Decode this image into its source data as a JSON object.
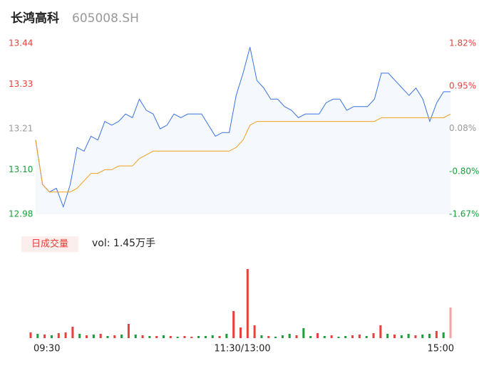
{
  "header": {
    "name": "长鸿高科",
    "code": "605008.SH"
  },
  "chart_data": [
    {
      "type": "line",
      "series": [
        {
          "name": "price",
          "color": "#3a73e0",
          "fill": "#f5f8fd",
          "values": [
            13.18,
            13.06,
            13.04,
            13.05,
            13.0,
            13.06,
            13.16,
            13.15,
            13.19,
            13.18,
            13.23,
            13.22,
            13.23,
            13.25,
            13.24,
            13.29,
            13.26,
            13.25,
            13.21,
            13.22,
            13.25,
            13.24,
            13.25,
            13.25,
            13.25,
            13.22,
            13.19,
            13.2,
            13.2,
            13.3,
            13.36,
            13.43,
            13.34,
            13.32,
            13.29,
            13.29,
            13.27,
            13.26,
            13.24,
            13.25,
            13.25,
            13.25,
            13.28,
            13.29,
            13.29,
            13.26,
            13.27,
            13.27,
            13.27,
            13.29,
            13.36,
            13.36,
            13.34,
            13.32,
            13.3,
            13.32,
            13.29,
            13.23,
            13.28,
            13.31,
            13.31
          ]
        },
        {
          "name": "average",
          "color": "#f0a020",
          "values": [
            13.18,
            13.06,
            13.04,
            13.04,
            13.04,
            13.04,
            13.05,
            13.07,
            13.09,
            13.09,
            13.1,
            13.1,
            13.11,
            13.11,
            13.11,
            13.13,
            13.14,
            13.15,
            13.15,
            13.15,
            13.15,
            13.15,
            13.15,
            13.15,
            13.15,
            13.15,
            13.15,
            13.15,
            13.15,
            13.16,
            13.18,
            13.22,
            13.23,
            13.23,
            13.23,
            13.23,
            13.23,
            13.23,
            13.23,
            13.23,
            13.23,
            13.23,
            13.23,
            13.23,
            13.23,
            13.23,
            13.23,
            13.23,
            13.23,
            13.23,
            13.24,
            13.24,
            13.24,
            13.24,
            13.24,
            13.24,
            13.24,
            13.24,
            13.24,
            13.24,
            13.25
          ]
        }
      ],
      "ylim": [
        12.98,
        13.44
      ],
      "yticks": [
        13.44,
        13.33,
        13.21,
        {
          "value": 13.1,
          "label": "13.10"
        },
        12.98
      ],
      "y2lim": [
        -1.67,
        1.82
      ],
      "y2ticks": [
        {
          "value": 1.82,
          "label": "1.82%"
        },
        {
          "value": 0.95,
          "label": "0.95%"
        },
        {
          "value": 0.08,
          "label": "0.08%"
        },
        {
          "value": -0.8,
          "label": "-0.80%"
        },
        {
          "value": -1.67,
          "label": "-1.67%"
        }
      ],
      "tick_colors": [
        "#e8403a",
        "#e8403a",
        "#999999",
        "#1a9f3a",
        "#1a9f3a"
      ]
    },
    {
      "type": "bar",
      "label": "日成交量",
      "summary": "vol: 1.45万手",
      "values": [
        8,
        6,
        5,
        4,
        7,
        8,
        16,
        6,
        4,
        5,
        6,
        3,
        4,
        5,
        20,
        5,
        4,
        3,
        3,
        4,
        3,
        2,
        3,
        2,
        3,
        3,
        4,
        3,
        6,
        38,
        15,
        97,
        18,
        4,
        3,
        2,
        4,
        6,
        4,
        14,
        3,
        7,
        3,
        4,
        2,
        3,
        4,
        5,
        3,
        7,
        18,
        6,
        5,
        4,
        6,
        4,
        5,
        6,
        10,
        8,
        43
      ],
      "colors": [
        "#e8403a",
        "#1a9f3a",
        "#e8403a",
        "#1a9f3a",
        "#e8403a",
        "#e8403a",
        "#e8403a",
        "#1a9f3a",
        "#e8403a",
        "#1a9f3a",
        "#e8403a",
        "#1a9f3a",
        "#e8403a",
        "#1a9f3a",
        "#e8403a",
        "#1a9f3a",
        "#e8403a",
        "#1a9f3a",
        "#e8403a",
        "#1a9f3a",
        "#e8403a",
        "#1a9f3a",
        "#e8403a",
        "#e8403a",
        "#1a9f3a",
        "#1a9f3a",
        "#1a9f3a",
        "#e8403a",
        "#1a9f3a",
        "#e8403a",
        "#e8403a",
        "#e8403a",
        "#e8403a",
        "#1a9f3a",
        "#e8403a",
        "#1a9f3a",
        "#1a9f3a",
        "#1a9f3a",
        "#e8403a",
        "#1a9f3a",
        "#1a9f3a",
        "#e8403a",
        "#1a9f3a",
        "#e8403a",
        "#1a9f3a",
        "#1a9f3a",
        "#e8403a",
        "#e8403a",
        "#1a9f3a",
        "#e8403a",
        "#e8403a",
        "#1a9f3a",
        "#e8403a",
        "#1a9f3a",
        "#1a9f3a",
        "#e8403a",
        "#1a9f3a",
        "#1a9f3a",
        "#e8403a",
        "#1a9f3a",
        "#f4a0a0"
      ],
      "x_labels": [
        "09:30",
        "11:30/13:00",
        "15:00"
      ]
    }
  ]
}
